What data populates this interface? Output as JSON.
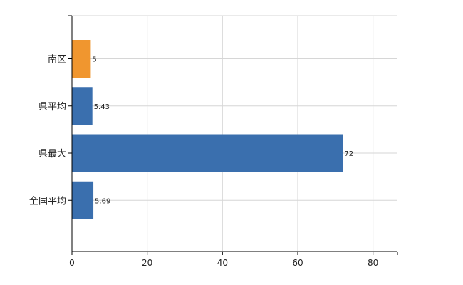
{
  "chart_data": {
    "type": "bar",
    "orientation": "horizontal",
    "categories": [
      "南区",
      "県平均",
      "県最大",
      "全国平均"
    ],
    "values": [
      5,
      5.43,
      72,
      5.69
    ],
    "data_labels": [
      "5",
      "5.43",
      "72",
      "5.69"
    ],
    "colors": [
      "#f0962f",
      "#3a6fae",
      "#3a6fae",
      "#3a6fae"
    ],
    "xlim": [
      0,
      86.5
    ],
    "xticks": [
      0,
      20,
      40,
      60,
      80
    ],
    "xtick_labels": [
      "0",
      "20",
      "40",
      "60",
      "80"
    ],
    "grid": true,
    "title": "",
    "xlabel": "",
    "ylabel": ""
  },
  "colors": {
    "grid": "#d6d6d6",
    "axis": "#000000"
  }
}
